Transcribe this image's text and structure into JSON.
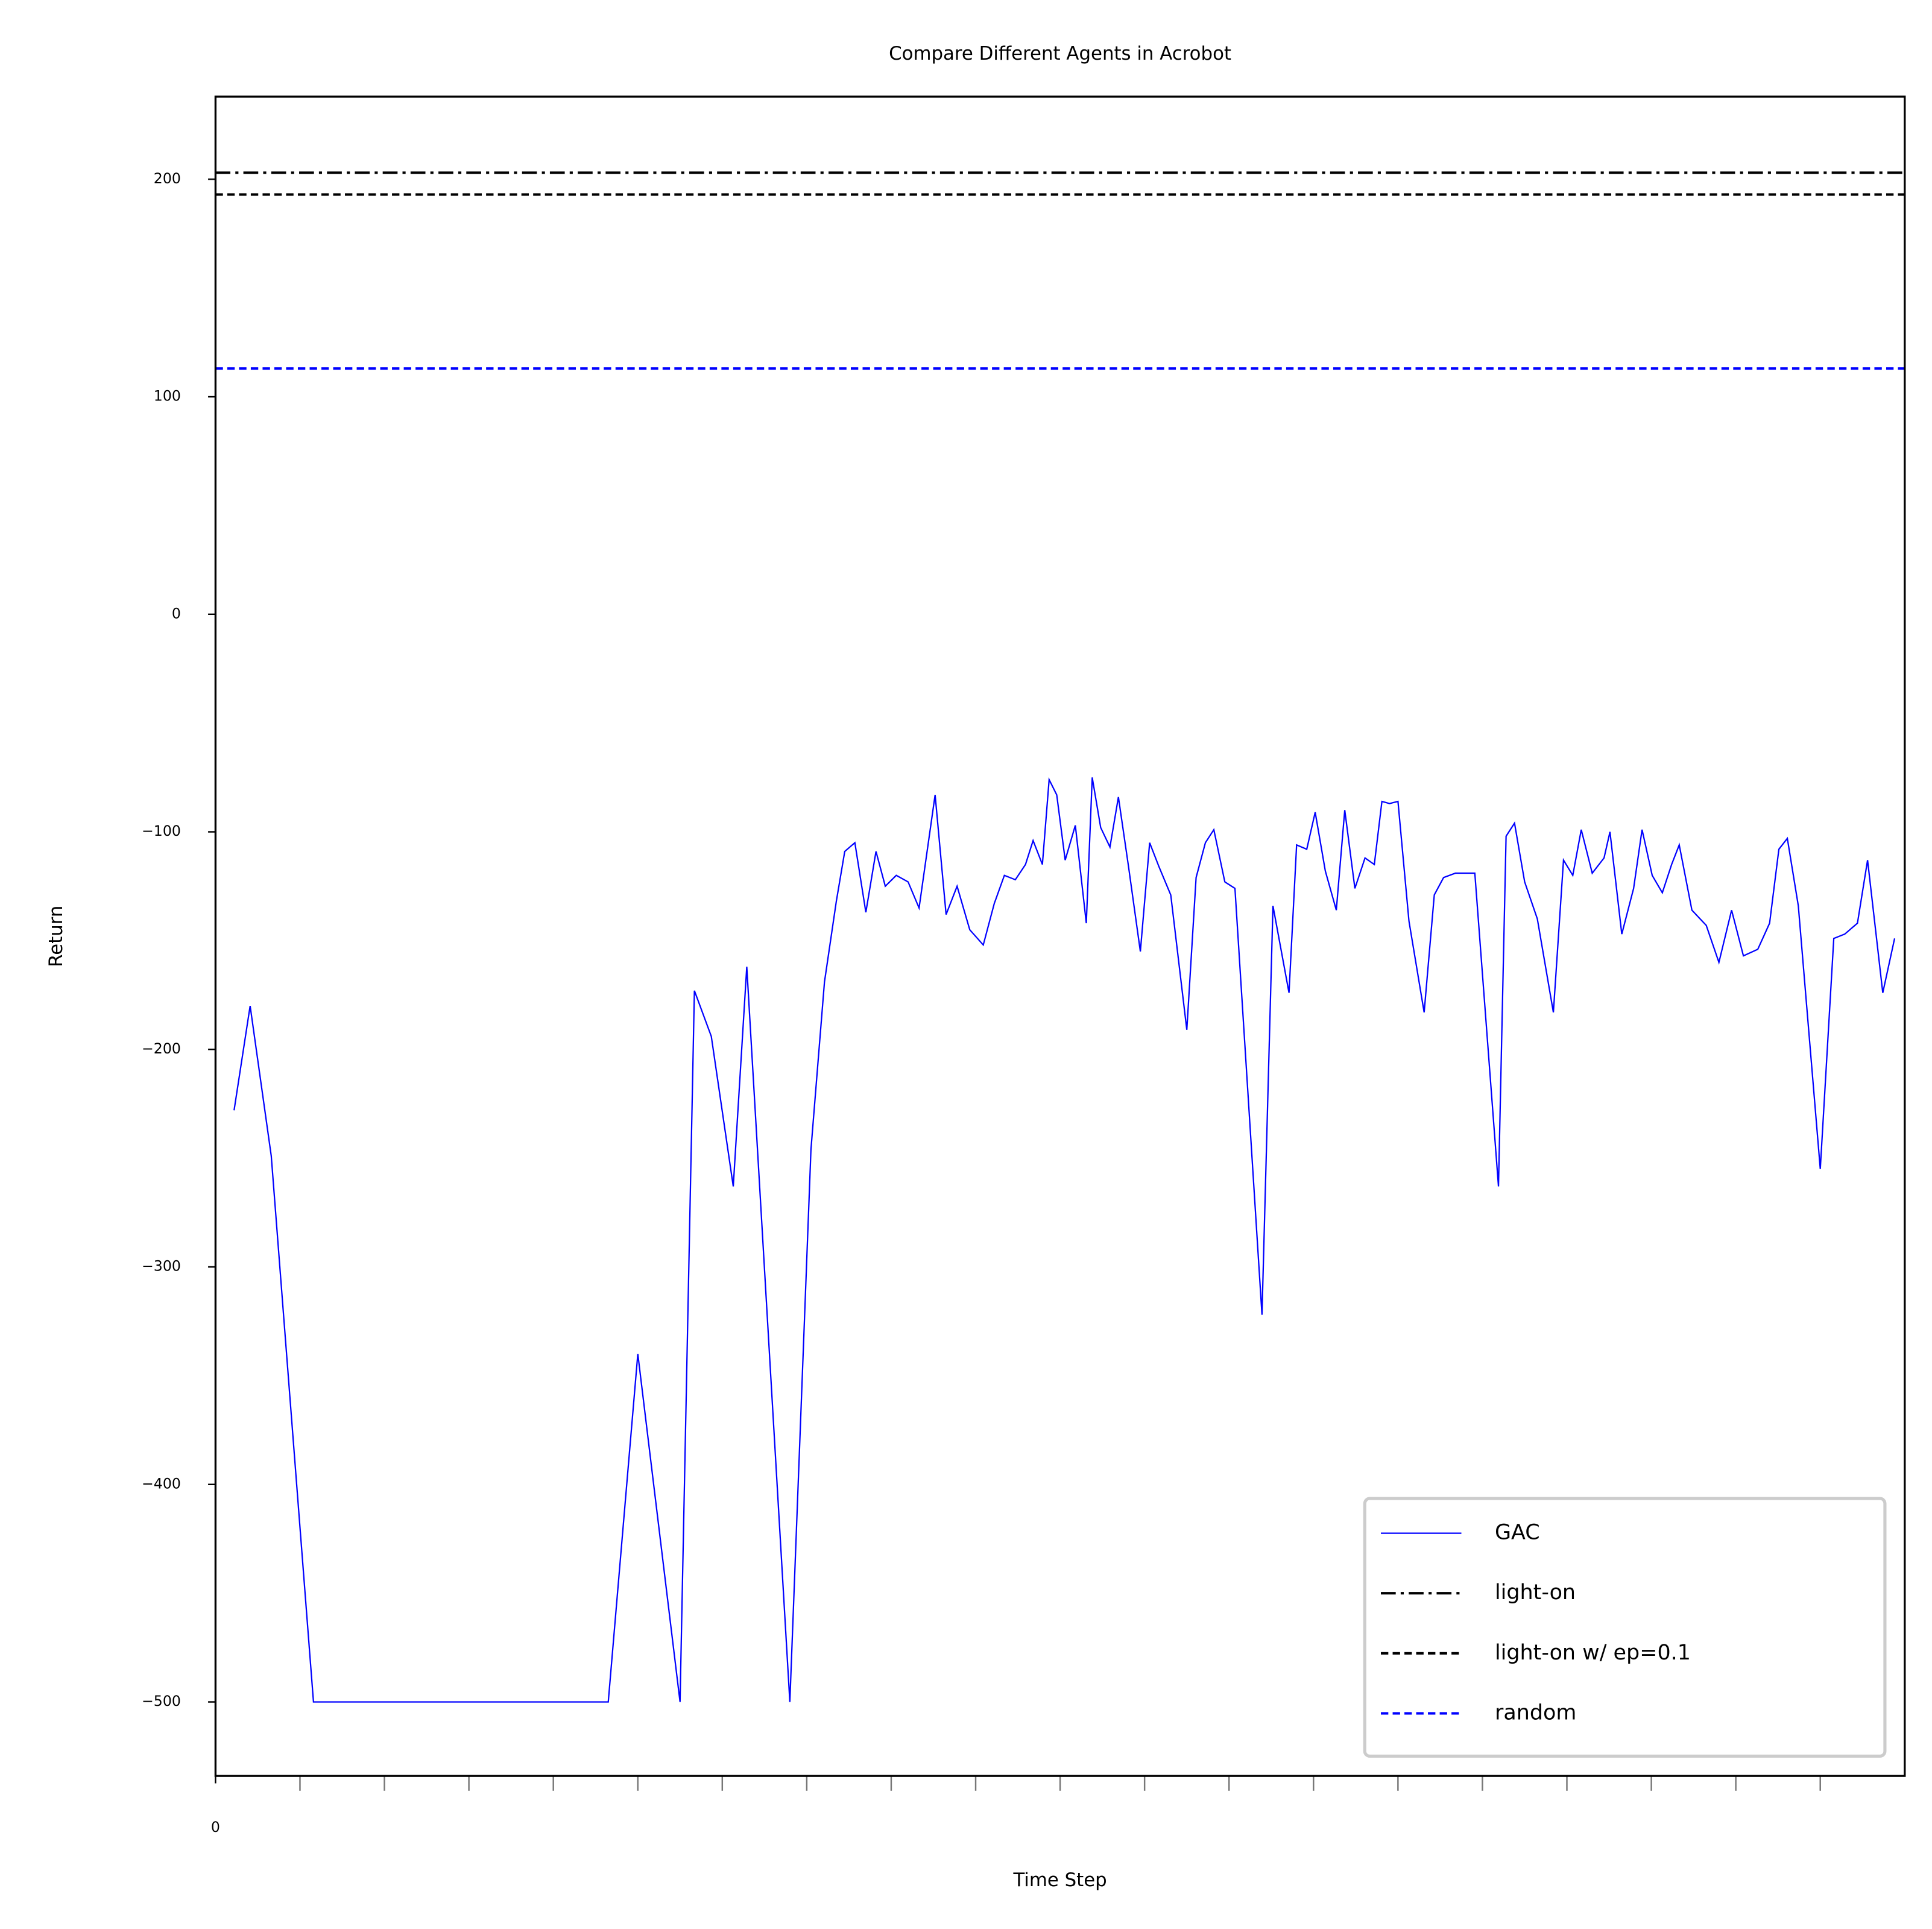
{
  "chart_data": {
    "type": "line",
    "title": "Compare Different Agents in Acrobot",
    "xlabel": "Time Step",
    "ylabel": "Return",
    "xlim": [
      0,
      20
    ],
    "xticks": [
      0
    ],
    "xminorticks": [
      1,
      2,
      3,
      4,
      5,
      6,
      7,
      8,
      9,
      10,
      11,
      12,
      13,
      14,
      15,
      16,
      17,
      18,
      19
    ],
    "ylim": [
      -534,
      238
    ],
    "yticks": [
      {
        "value": -500,
        "label": "−500"
      },
      {
        "value": -400,
        "label": "−400"
      },
      {
        "value": -300,
        "label": "−300"
      },
      {
        "value": -200,
        "label": "−200"
      },
      {
        "value": -100,
        "label": "−100"
      },
      0,
      100,
      200
    ],
    "legend": "lower right",
    "x": [
      0.22,
      0.41,
      0.66,
      1.16,
      4.65,
      5.0,
      5.5,
      5.67,
      5.87,
      6.13,
      6.29,
      6.8,
      7.05,
      7.21,
      7.35,
      7.45,
      7.57,
      7.7,
      7.82,
      7.93,
      8.06,
      8.2,
      8.33,
      8.52,
      8.65,
      8.78,
      8.93,
      9.09,
      9.22,
      9.34,
      9.47,
      9.59,
      9.68,
      9.79,
      9.87,
      9.96,
      10.06,
      10.18,
      10.31,
      10.38,
      10.48,
      10.59,
      10.69,
      10.81,
      10.95,
      11.06,
      11.17,
      11.31,
      11.5,
      11.61,
      11.72,
      11.82,
      11.95,
      12.07,
      12.39,
      12.52,
      12.71,
      12.8,
      12.92,
      13.02,
      13.14,
      13.27,
      13.37,
      13.49,
      13.61,
      13.72,
      13.81,
      13.9,
      14.0,
      14.13,
      14.31,
      14.43,
      14.54,
      14.68,
      14.91,
      15.19,
      15.28,
      15.38,
      15.5,
      15.65,
      15.84,
      15.96,
      16.07,
      16.17,
      16.3,
      16.44,
      16.51,
      16.65,
      16.79,
      16.89,
      17.01,
      17.13,
      17.24,
      17.33,
      17.48,
      17.65,
      17.8,
      17.95,
      18.09,
      18.26,
      18.4,
      18.51,
      18.61,
      18.74,
      19.0,
      19.16,
      19.29,
      19.44,
      19.56,
      19.74,
      19.88
    ],
    "series": [
      {
        "name": "GAC",
        "color": "#0000ff",
        "linestyle": "solid",
        "values": [
          -228,
          -180,
          -249,
          -500,
          -500,
          -340,
          -500,
          -173,
          -194,
          -263,
          -162,
          -500,
          -246,
          -169,
          -132,
          -109,
          -105,
          -137,
          -109,
          -125,
          -120,
          -123,
          -135,
          -83,
          -138,
          -125,
          -145,
          -152,
          -133,
          -120,
          -122,
          -115,
          -104,
          -115,
          -76,
          -83,
          -113,
          -97,
          -142,
          -75,
          -98,
          -107,
          -84,
          -116,
          -155,
          -105,
          -116,
          -129,
          -191,
          -121,
          -105,
          -99,
          -123,
          -126,
          -322,
          -134,
          -174,
          -106,
          -108,
          -91,
          -118,
          -136,
          -90,
          -126,
          -112,
          -115,
          -86,
          -87,
          -86,
          -141,
          -183,
          -129,
          -121,
          -119,
          -119,
          -263,
          -102,
          -96,
          -123,
          -140,
          -183,
          -113,
          -120,
          -99,
          -119,
          -112,
          -100,
          -147,
          -126,
          -99,
          -120,
          -128,
          -115,
          -106,
          -136,
          -143,
          -160,
          -136,
          -157,
          -154,
          -142,
          -108,
          -103,
          -134,
          -255,
          -149,
          -147,
          -142,
          -113,
          -174,
          -149
        ]
      },
      {
        "name": "light-on",
        "color": "#000000",
        "linestyle": "dashdot",
        "value": 203
      },
      {
        "name": "light-on w/ ep=0.1",
        "color": "#000000",
        "linestyle": "dashed",
        "value": 193
      },
      {
        "name": "random",
        "color": "#0000ff",
        "linestyle": "dashed",
        "value": 113
      }
    ]
  }
}
